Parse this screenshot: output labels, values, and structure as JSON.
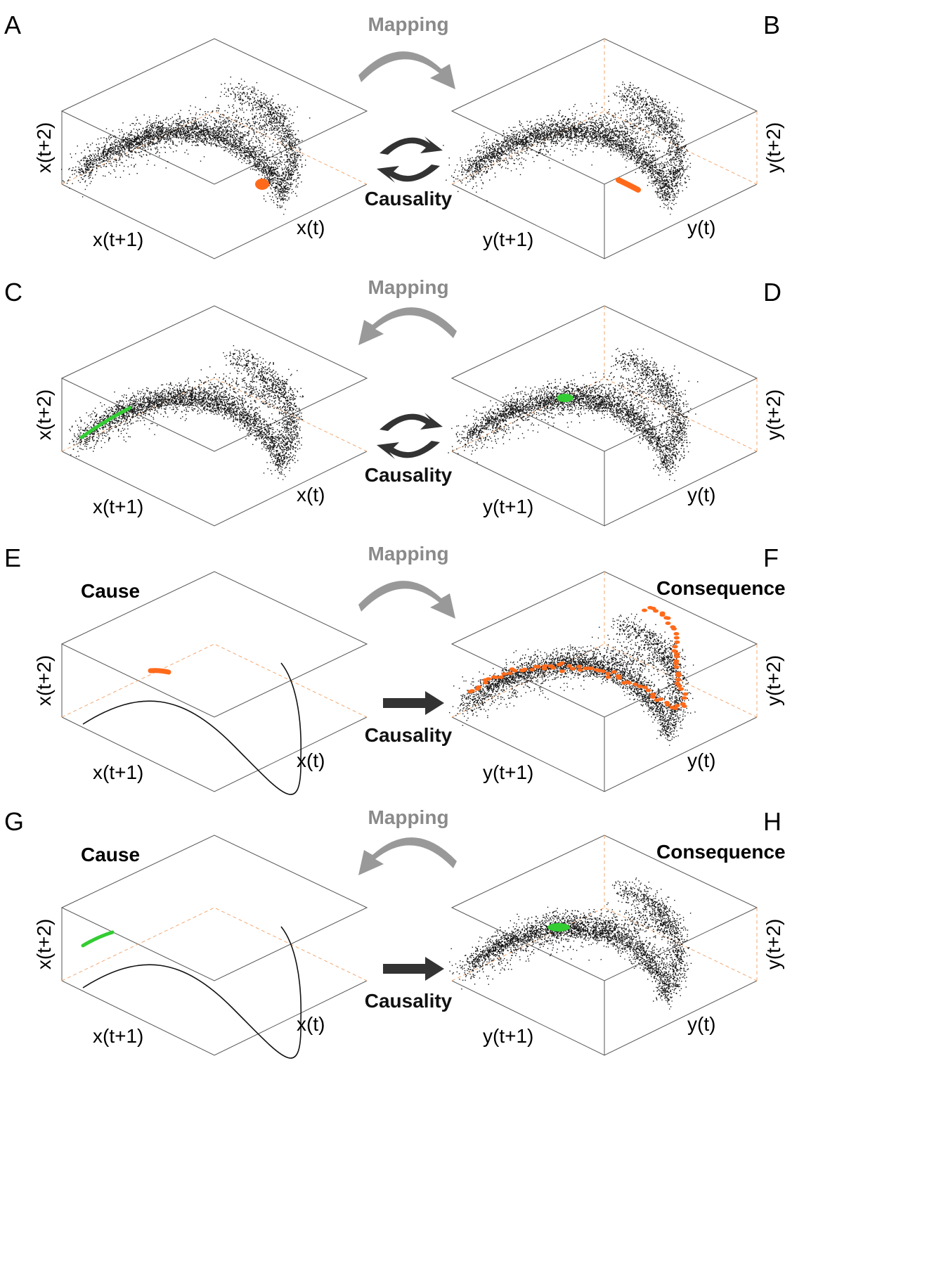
{
  "colors": {
    "points": "#111111",
    "highlight_orange": "#ff6a1a",
    "highlight_green": "#33cc33",
    "mapping_arrow": "#999999",
    "causality_arrow": "#333333",
    "box_edge": "#555555",
    "box_back_edge": "#f2a872"
  },
  "icons": {
    "mapping_right": "curved-arrow-right-icon",
    "mapping_left": "curved-arrow-left-icon",
    "bidirectional": "cycle-arrows-icon",
    "unidirectional": "right-arrow-icon"
  },
  "labels": {
    "mapping": "Mapping",
    "causality": "Causality",
    "cause": "Cause",
    "consequence": "Consequence"
  },
  "rows": [
    {
      "left": {
        "panel": "A",
        "shape": "attractor",
        "highlight": "orange-blob",
        "axes": {
          "vertical": "x(t+2)",
          "depth": "x(t+1)",
          "width": "x(t)"
        }
      },
      "right": {
        "panel": "B",
        "shape": "attractor",
        "highlight": "orange-band",
        "axes": {
          "vertical": "y(t+2)",
          "depth": "y(t+1)",
          "width": "y(t)"
        }
      },
      "mapping_direction": "right",
      "causality": "bidirectional"
    },
    {
      "left": {
        "panel": "C",
        "shape": "attractor",
        "highlight": "green-band",
        "axes": {
          "vertical": "x(t+2)",
          "depth": "x(t+1)",
          "width": "x(t)"
        }
      },
      "right": {
        "panel": "D",
        "shape": "attractor",
        "highlight": "green-blob",
        "axes": {
          "vertical": "y(t+2)",
          "depth": "y(t+1)",
          "width": "y(t)"
        }
      },
      "mapping_direction": "left",
      "causality": "bidirectional"
    },
    {
      "left": {
        "panel": "E",
        "shape": "curve",
        "highlight": "orange-blob",
        "role": "Cause",
        "axes": {
          "vertical": "x(t+2)",
          "depth": "x(t+1)",
          "width": "x(t)"
        }
      },
      "right": {
        "panel": "F",
        "shape": "attractor",
        "highlight": "orange-scatter",
        "role": "Consequence",
        "axes": {
          "vertical": "y(t+2)",
          "depth": "y(t+1)",
          "width": "y(t)"
        }
      },
      "mapping_direction": "right",
      "causality": "unidirectional"
    },
    {
      "left": {
        "panel": "G",
        "shape": "curve",
        "highlight": "green-band",
        "role": "Cause",
        "axes": {
          "vertical": "x(t+2)",
          "depth": "x(t+1)",
          "width": "x(t)"
        }
      },
      "right": {
        "panel": "H",
        "shape": "attractor",
        "highlight": "green-blob",
        "role": "Consequence",
        "axes": {
          "vertical": "y(t+2)",
          "depth": "y(t+1)",
          "width": "y(t)"
        }
      },
      "mapping_direction": "left",
      "causality": "unidirectional"
    }
  ]
}
